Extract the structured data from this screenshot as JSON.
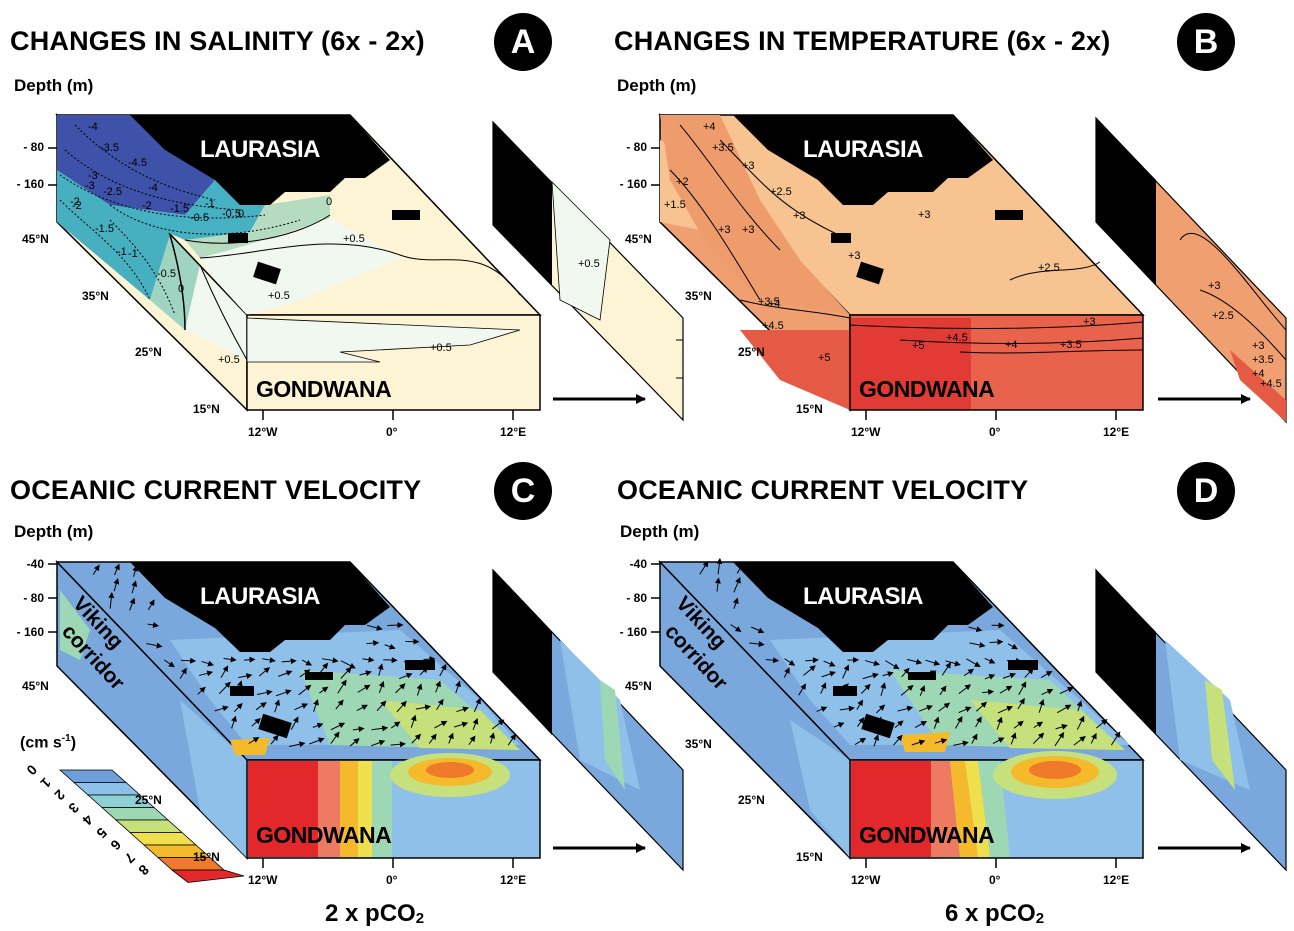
{
  "panels": {
    "a": {
      "title": "CHANGES IN SALINITY (6x - 2x)",
      "badge": "A",
      "depth_label": "Depth (m)",
      "depth_ticks": [
        "- 80",
        "- 160"
      ],
      "lat_ticks": [
        "45°N",
        "35°N",
        "25°N",
        "15°N"
      ],
      "lon_ticks": [
        "12°W",
        "0°",
        "12°E"
      ],
      "north_land": "LAURASIA",
      "south_land": "GONDWANA",
      "contours": [
        "-4",
        "-4.5",
        "-4",
        "-3.5",
        "-3",
        "-2.5",
        "-2",
        "-1.5",
        "-1",
        "-0.5",
        "0",
        "-2",
        "-1",
        "-0.5",
        "0",
        "+0.5",
        "-3",
        "-2",
        "-1.5",
        "-1",
        "-0.5",
        "0",
        "+0.5",
        "+0.5",
        "+0.5",
        "+0.5"
      ],
      "colors": {
        "strong_neg": "#3b4ea8",
        "mid_neg": "#45b1c2",
        "weak_neg": "#b5dcc0",
        "near_zero": "#f1f8ef",
        "positive": "#fcf4d4"
      }
    },
    "b": {
      "title": "CHANGES IN TEMPERATURE (6x - 2x)",
      "badge": "B",
      "depth_label": "Depth (m)",
      "depth_ticks": [
        "- 80",
        "- 160"
      ],
      "lat_ticks": [
        "45°N",
        "35°N",
        "25°N",
        "15°N"
      ],
      "lon_ticks": [
        "12°W",
        "0°",
        "12°E"
      ],
      "north_land": "LAURASIA",
      "south_land": "GONDWANA",
      "contours": [
        "+4",
        "+3.5",
        "+3",
        "+2.5",
        "+3",
        "+3",
        "+2",
        "+1.5",
        "+3",
        "+3",
        "+3",
        "+3.5",
        "+4",
        "+4.5",
        "+5",
        "+2.5",
        "+3",
        "+5",
        "+4.5",
        "+4",
        "+3.5",
        "+3",
        "+2.5",
        "+3",
        "+3.5",
        "+4",
        "+4.5"
      ],
      "colors": {
        "light": "#f7c391",
        "mid": "#f0a070",
        "warm": "#ea7a5a",
        "hot": "#e23a34"
      }
    },
    "c": {
      "title": "OCEANIC CURRENT VELOCITY",
      "badge": "C",
      "depth_label": "Depth (m)",
      "depth_ticks": [
        "-40",
        "- 80",
        "- 160"
      ],
      "lat_ticks": [
        "45°N",
        "25°N",
        "15°N"
      ],
      "lon_ticks": [
        "12°W",
        "0°",
        "12°E"
      ],
      "north_land": "LAURASIA",
      "south_land": "GONDWANA",
      "corridor_label": [
        "Viking",
        "corridor"
      ],
      "caption": {
        "pre": "2 x pCO",
        "sub": "2"
      }
    },
    "d": {
      "title": "OCEANIC CURRENT VELOCITY",
      "badge": "D",
      "depth_label": "Depth (m)",
      "depth_ticks": [
        "-40",
        "- 80",
        "- 160"
      ],
      "lat_ticks": [
        "45°N",
        "35°N",
        "25°N",
        "15°N"
      ],
      "lon_ticks": [
        "12°W",
        "0°",
        "12°E"
      ],
      "north_land": "LAURASIA",
      "south_land": "GONDWANA",
      "corridor_label": [
        "Viking",
        "corridor"
      ],
      "caption": {
        "pre": "6 x pCO",
        "sub": "2"
      }
    }
  },
  "velocity_legend": {
    "unit_main": "(cm s",
    "unit_sup": "-1",
    "unit_end": ")",
    "values": [
      "0",
      "1",
      "2",
      "3",
      "4",
      "5",
      "6",
      "7",
      "8"
    ],
    "colors": [
      "#6f9fd8",
      "#8ec0ea",
      "#8fd0d6",
      "#9ed7b4",
      "#c6e07c",
      "#eee04c",
      "#f4ba2c",
      "#ee7a2a",
      "#e2282a"
    ]
  }
}
